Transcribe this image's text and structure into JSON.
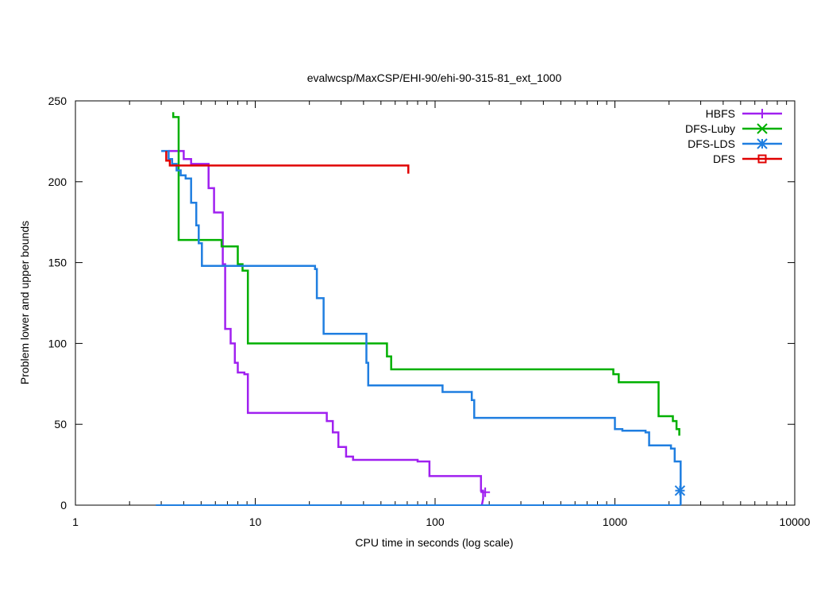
{
  "chart_data": {
    "type": "line",
    "title": "evalwcsp/MaxCSP/EHI-90/ehi-90-315-81_ext_1000",
    "xlabel": "CPU time in seconds (log scale)",
    "ylabel": "Problem lower and upper bounds",
    "xscale": "log",
    "xlim": [
      1,
      10000
    ],
    "ylim": [
      0,
      250
    ],
    "xticks": [
      {
        "value": 1,
        "label": "1"
      },
      {
        "value": 10,
        "label": "10"
      },
      {
        "value": 100,
        "label": "100"
      },
      {
        "value": 1000,
        "label": "1000"
      },
      {
        "value": 10000,
        "label": "10000"
      }
    ],
    "yticks": [
      {
        "value": 0,
        "label": "0"
      },
      {
        "value": 50,
        "label": "50"
      },
      {
        "value": 100,
        "label": "100"
      },
      {
        "value": 150,
        "label": "150"
      },
      {
        "value": 200,
        "label": "200"
      },
      {
        "value": 250,
        "label": "250"
      }
    ],
    "legend_position": "top-right",
    "series": [
      {
        "name": "HBFS",
        "color": "#a020f0",
        "marker": "plus",
        "end_marker": [
          190,
          8
        ],
        "steps": [
          [
            3.3,
            219
          ],
          [
            4.0,
            219
          ],
          [
            4.0,
            214
          ],
          [
            4.4,
            214
          ],
          [
            4.4,
            211
          ],
          [
            5.5,
            211
          ],
          [
            5.5,
            196
          ],
          [
            5.9,
            196
          ],
          [
            5.9,
            181
          ],
          [
            6.6,
            181
          ],
          [
            6.6,
            149
          ],
          [
            6.8,
            149
          ],
          [
            6.8,
            109
          ],
          [
            7.3,
            109
          ],
          [
            7.3,
            100
          ],
          [
            7.7,
            100
          ],
          [
            7.7,
            88
          ],
          [
            8.0,
            88
          ],
          [
            8.0,
            82
          ],
          [
            8.7,
            82
          ],
          [
            8.7,
            81
          ],
          [
            9.1,
            81
          ],
          [
            9.1,
            57
          ],
          [
            25,
            57
          ],
          [
            25,
            52
          ],
          [
            27,
            52
          ],
          [
            27,
            45
          ],
          [
            29,
            45
          ],
          [
            29,
            36
          ],
          [
            32,
            36
          ],
          [
            32,
            30
          ],
          [
            35,
            30
          ],
          [
            35,
            28
          ],
          [
            80,
            28
          ],
          [
            80,
            27
          ],
          [
            93,
            27
          ],
          [
            93,
            18
          ],
          [
            180,
            18
          ],
          [
            180,
            9
          ],
          [
            185,
            9
          ],
          [
            185,
            4
          ],
          [
            182,
            0
          ]
        ],
        "lower": [
          [
            3.0,
            0
          ],
          [
            185,
            0
          ]
        ]
      },
      {
        "name": "DFS-Luby",
        "color": "#00b000",
        "marker": "cross",
        "steps": [
          [
            3.5,
            243
          ],
          [
            3.5,
            240
          ],
          [
            3.75,
            240
          ],
          [
            3.75,
            164
          ],
          [
            6.5,
            164
          ],
          [
            6.5,
            160
          ],
          [
            8.0,
            160
          ],
          [
            8.0,
            149
          ],
          [
            8.5,
            149
          ],
          [
            8.5,
            145
          ],
          [
            9.1,
            145
          ],
          [
            9.1,
            100
          ],
          [
            54,
            100
          ],
          [
            54,
            92
          ],
          [
            57,
            92
          ],
          [
            57,
            84
          ],
          [
            980,
            84
          ],
          [
            980,
            81
          ],
          [
            1050,
            81
          ],
          [
            1050,
            76
          ],
          [
            1750,
            76
          ],
          [
            1750,
            55
          ],
          [
            2100,
            55
          ],
          [
            2100,
            52
          ],
          [
            2200,
            52
          ],
          [
            2200,
            47
          ],
          [
            2280,
            47
          ],
          [
            2280,
            43
          ]
        ],
        "lower": []
      },
      {
        "name": "DFS-LDS",
        "color": "#1f7ee0",
        "marker": "star",
        "end_marker": [
          2300,
          9
        ],
        "steps": [
          [
            3.0,
            219
          ],
          [
            3.3,
            219
          ],
          [
            3.3,
            214
          ],
          [
            3.45,
            214
          ],
          [
            3.45,
            211
          ],
          [
            3.65,
            211
          ],
          [
            3.65,
            207
          ],
          [
            3.85,
            207
          ],
          [
            3.85,
            204
          ],
          [
            4.1,
            204
          ],
          [
            4.1,
            202
          ],
          [
            4.4,
            202
          ],
          [
            4.4,
            187
          ],
          [
            4.7,
            187
          ],
          [
            4.7,
            173
          ],
          [
            4.85,
            173
          ],
          [
            4.85,
            162
          ],
          [
            5.05,
            162
          ],
          [
            5.05,
            148
          ],
          [
            21.5,
            148
          ],
          [
            21.5,
            146
          ],
          [
            22.0,
            146
          ],
          [
            22.0,
            128
          ],
          [
            24.0,
            128
          ],
          [
            24.0,
            106
          ],
          [
            41.5,
            106
          ],
          [
            41.5,
            88
          ],
          [
            42.5,
            88
          ],
          [
            42.5,
            74
          ],
          [
            110,
            74
          ],
          [
            110,
            70
          ],
          [
            160,
            70
          ],
          [
            160,
            65
          ],
          [
            165,
            65
          ],
          [
            165,
            54
          ],
          [
            1000,
            54
          ],
          [
            1000,
            47
          ],
          [
            1100,
            47
          ],
          [
            1100,
            46
          ],
          [
            1480,
            46
          ],
          [
            1480,
            45
          ],
          [
            1550,
            45
          ],
          [
            1550,
            37
          ],
          [
            2050,
            37
          ],
          [
            2050,
            35
          ],
          [
            2150,
            35
          ],
          [
            2150,
            27
          ],
          [
            2320,
            27
          ],
          [
            2320,
            0
          ]
        ],
        "lower": [
          [
            2.8,
            0
          ],
          [
            2320,
            0
          ]
        ]
      },
      {
        "name": "DFS",
        "color": "#e00000",
        "marker": "square",
        "steps": [
          [
            3.2,
            219
          ],
          [
            3.2,
            213
          ],
          [
            3.35,
            213
          ],
          [
            3.35,
            210
          ],
          [
            71,
            210
          ],
          [
            71,
            205
          ]
        ],
        "lower": []
      }
    ]
  }
}
